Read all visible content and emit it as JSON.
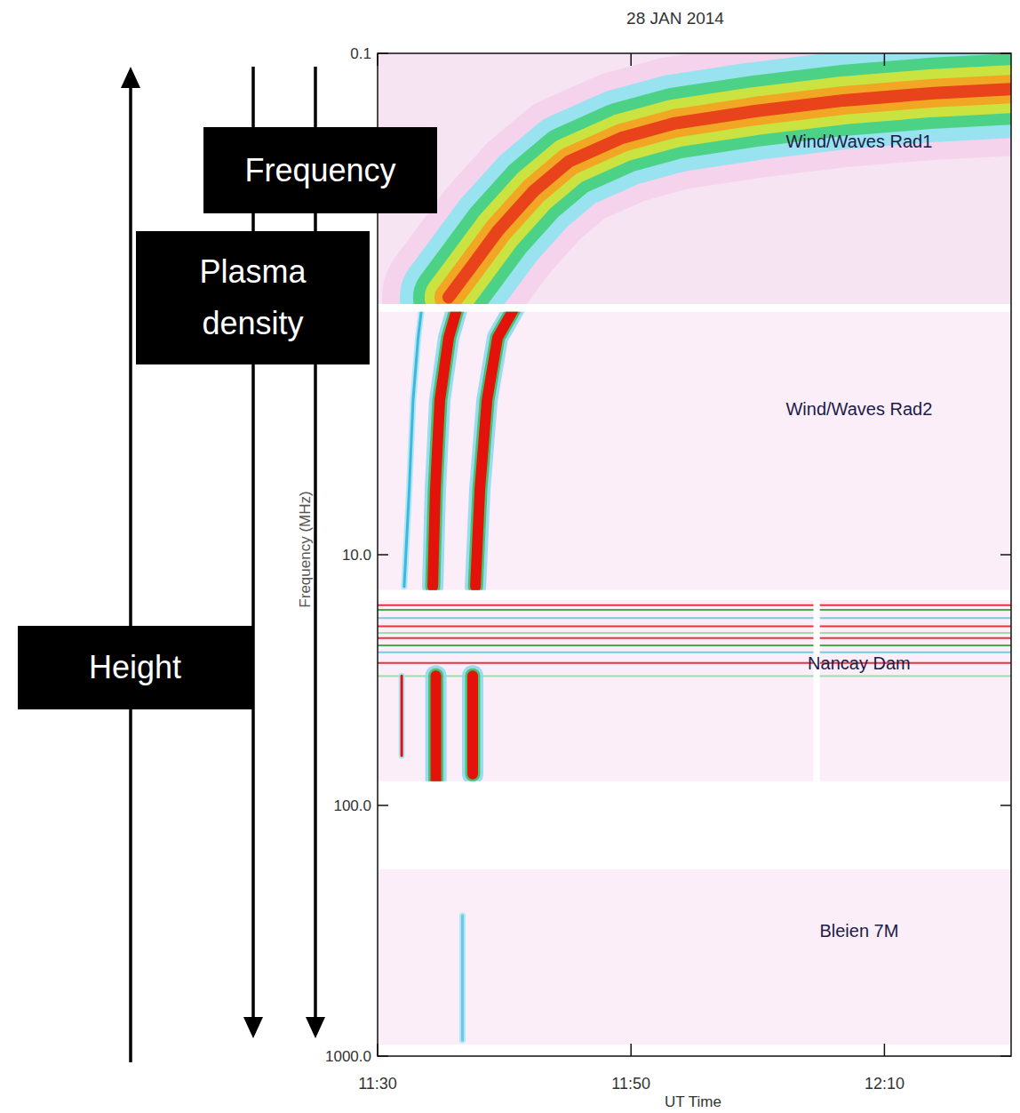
{
  "chart_data": {
    "type": "line",
    "title": "28 JAN 2014",
    "x_label": "UT Time",
    "y_label": "Frequency (MHz)",
    "log": "y",
    "xlim": [
      690,
      740
    ],
    "xticks": [
      {
        "value": 690,
        "label": "11:30"
      },
      {
        "value": 710,
        "label": "11:50"
      },
      {
        "value": 730,
        "label": "12:10"
      }
    ],
    "ylim": [
      1000,
      0.1
    ],
    "yticks": [
      {
        "value": 0.1,
        "label": "0.1"
      },
      {
        "value": 10,
        "label": "10.0"
      },
      {
        "value": 100,
        "label": "100.0"
      },
      {
        "value": 1000,
        "label": "1000.0"
      }
    ],
    "bands": [
      {
        "label": "Wind/Waves Rad1",
        "range": [
          0.1,
          1.0
        ]
      },
      {
        "label": "Wind/Waves Rad2",
        "range": [
          1.075,
          13.825
        ]
      },
      {
        "label": "Nancay Dam",
        "range": [
          15.2,
          80
        ],
        "rfi": [
          15.9,
          16.6,
          17.9,
          19.3,
          20.5,
          21.5,
          23,
          24.5,
          27,
          30.5
        ],
        "gap": [
          724.4,
          724.9
        ]
      },
      {
        "label": "Bleien 7M",
        "range": [
          180,
          900
        ]
      }
    ],
    "series": [
      {
        "x": [
          695.6,
          697.4,
          699.5,
          702.3,
          705.1,
          709.3,
          713.5,
          719.8,
          726.8,
          733.9,
          740
        ],
        "values": [
          0.94,
          0.71,
          0.51,
          0.355,
          0.27,
          0.217,
          0.19,
          0.17,
          0.154,
          0.144,
          0.139
        ],
        "color": "#e8431a",
        "line_style": "broad"
      },
      {
        "x": [
          692.1,
          692.5,
          692.8,
          693.2,
          693.5
        ],
        "values": [
          13.4,
          5.47,
          2.42,
          1.36,
          1.02
        ],
        "color": "#3cb8e0",
        "line_style": "faint"
      },
      {
        "x": [
          694.35,
          694.56,
          694.91,
          695.61,
          696.32
        ],
        "values": [
          13.4,
          5.47,
          2.42,
          1.36,
          1.02
        ],
        "color": "#e3120b",
        "line_style": "narrow"
      },
      {
        "x": [
          697.72,
          698.07,
          698.63,
          699.47,
          700.88
        ],
        "values": [
          13.4,
          5.47,
          2.42,
          1.36,
          1.02
        ],
        "color": "#e3120b",
        "line_style": "narrow"
      },
      {
        "x": [
          691.9,
          691.9
        ],
        "values": [
          30.4,
          63.3
        ],
        "color": "#e3120b",
        "line_style": "faint"
      },
      {
        "x": [
          694.6,
          694.6
        ],
        "values": [
          30.4,
          80
        ],
        "color": "#e3120b",
        "line_style": "narrow"
      },
      {
        "x": [
          697.5,
          697.5
        ],
        "values": [
          30.4,
          75
        ],
        "color": "#e3120b",
        "line_style": "narrow"
      },
      {
        "x": [
          696.7,
          696.7
        ],
        "values": [
          275,
          863
        ],
        "color": "#6cc8e8",
        "line_style": "faint"
      }
    ],
    "annotations": [
      {
        "text": "Frequency",
        "direction": "down"
      },
      {
        "text": "Plasma density",
        "direction": "down"
      },
      {
        "text": "Height",
        "direction": "up"
      }
    ]
  }
}
